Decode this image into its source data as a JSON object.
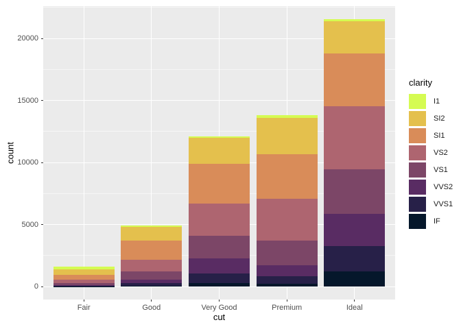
{
  "chart_data": {
    "type": "bar",
    "stacked": true,
    "title": "",
    "xlabel": "cut",
    "ylabel": "count",
    "legend_title": "clarity",
    "legend_position": "right",
    "categories": [
      "Fair",
      "Good",
      "Very Good",
      "Premium",
      "Ideal"
    ],
    "series": [
      {
        "name": "I1",
        "color": "#D5FB52",
        "values": [
          210,
          96,
          84,
          205,
          146
        ]
      },
      {
        "name": "SI2",
        "color": "#E4C04D",
        "values": [
          466,
          1081,
          2100,
          2949,
          2598
        ]
      },
      {
        "name": "SI1",
        "color": "#D98C59",
        "values": [
          408,
          1560,
          3240,
          3575,
          4282
        ]
      },
      {
        "name": "VS2",
        "color": "#AE6570",
        "values": [
          261,
          978,
          2591,
          3357,
          5071
        ]
      },
      {
        "name": "VS1",
        "color": "#7C4667",
        "values": [
          170,
          648,
          1775,
          1989,
          3589
        ]
      },
      {
        "name": "VVS2",
        "color": "#592C63",
        "values": [
          69,
          286,
          1235,
          870,
          2606
        ]
      },
      {
        "name": "VVS1",
        "color": "#272048",
        "values": [
          17,
          186,
          789,
          616,
          2047
        ]
      },
      {
        "name": "IF",
        "color": "#05172B",
        "values": [
          9,
          71,
          268,
          230,
          1212
        ]
      }
    ],
    "stack_order_note": "first series (I1) is drawn at the top of each stack",
    "totals": [
      1610,
      4906,
      12082,
      13791,
      21551
    ],
    "yticks": [
      0,
      5000,
      10000,
      15000,
      20000
    ],
    "ytick_labels": [
      "0",
      "5000",
      "10000",
      "15000",
      "20000"
    ],
    "y_minor_ticks": [
      2500,
      7500,
      12500,
      17500,
      22500
    ],
    "ylim": [
      -1078,
      22629
    ],
    "grid": true,
    "panel_background": "#EBEBEB",
    "grid_color": "#FFFFFF",
    "tick_label_color": "#4D4D4D",
    "axis_title_color": "#000000"
  }
}
